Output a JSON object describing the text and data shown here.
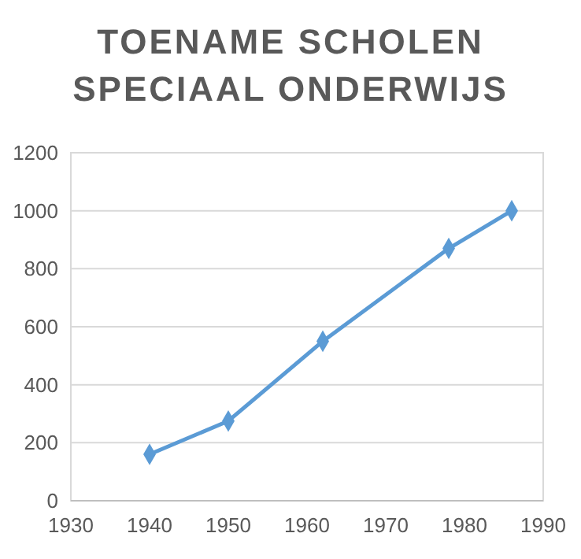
{
  "chart_data": {
    "type": "line",
    "title": "TOENAME SCHOLEN SPECIAAL ONDERWIJS",
    "x": [
      1940,
      1950,
      1962,
      1978,
      1986
    ],
    "series": [
      {
        "color": "#5b9bd5",
        "values": [
          160,
          275,
          550,
          870,
          1000
        ]
      }
    ],
    "xlim": [
      1930,
      1990
    ],
    "xticks": [
      1930,
      1940,
      1950,
      1960,
      1970,
      1980,
      1990
    ],
    "ylim": [
      0,
      1200
    ],
    "yticks": [
      0,
      200,
      400,
      600,
      800,
      1000,
      1200
    ],
    "grid": "y",
    "marker": "diamond",
    "line_style": "solid"
  }
}
